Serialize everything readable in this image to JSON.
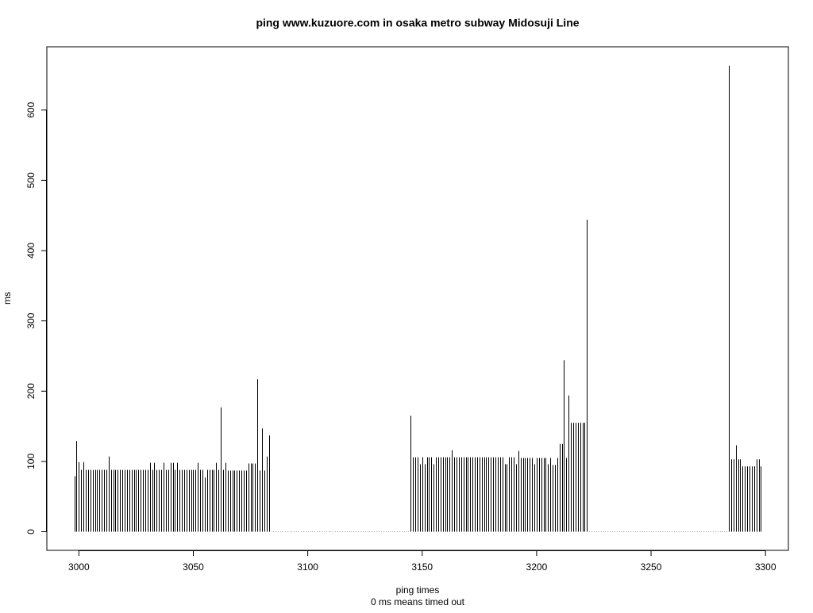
{
  "chart_data": {
    "type": "spike",
    "title": "ping www.kuzuore.com in osaka metro subway Midosuji Line",
    "xlabel": "ping times",
    "xlabel_note": "0 ms means timed out",
    "ylabel": "ms",
    "color": "#000000",
    "xlim": [
      2986,
      3310
    ],
    "ylim": [
      -26.5,
      690
    ],
    "xticks": [
      3000,
      3050,
      3100,
      3150,
      3200,
      3250,
      3300
    ],
    "yticks": [
      0,
      100,
      200,
      300,
      400,
      500,
      600
    ],
    "x": [
      2998,
      2999,
      3000,
      3001,
      3002,
      3003,
      3004,
      3005,
      3006,
      3007,
      3008,
      3009,
      3010,
      3011,
      3012,
      3013,
      3014,
      3015,
      3016,
      3017,
      3018,
      3019,
      3020,
      3021,
      3022,
      3023,
      3024,
      3025,
      3026,
      3027,
      3028,
      3029,
      3030,
      3031,
      3032,
      3033,
      3034,
      3035,
      3036,
      3037,
      3038,
      3039,
      3040,
      3041,
      3042,
      3043,
      3044,
      3045,
      3046,
      3047,
      3048,
      3049,
      3050,
      3051,
      3052,
      3053,
      3054,
      3055,
      3056,
      3057,
      3058,
      3059,
      3060,
      3061,
      3062,
      3063,
      3064,
      3065,
      3066,
      3067,
      3068,
      3069,
      3070,
      3071,
      3072,
      3073,
      3074,
      3075,
      3076,
      3077,
      3078,
      3079,
      3080,
      3081,
      3082,
      3083,
      3084,
      3085,
      3086,
      3087,
      3088,
      3089,
      3090,
      3091,
      3092,
      3093,
      3094,
      3095,
      3096,
      3097,
      3098,
      3099,
      3100,
      3101,
      3102,
      3103,
      3104,
      3105,
      3106,
      3107,
      3108,
      3109,
      3110,
      3111,
      3112,
      3113,
      3114,
      3115,
      3116,
      3117,
      3118,
      3119,
      3120,
      3121,
      3122,
      3123,
      3124,
      3125,
      3126,
      3127,
      3128,
      3129,
      3130,
      3131,
      3132,
      3133,
      3134,
      3135,
      3136,
      3137,
      3138,
      3139,
      3140,
      3141,
      3142,
      3143,
      3144,
      3145,
      3146,
      3147,
      3148,
      3149,
      3150,
      3151,
      3152,
      3153,
      3154,
      3155,
      3156,
      3157,
      3158,
      3159,
      3160,
      3161,
      3162,
      3163,
      3164,
      3165,
      3166,
      3167,
      3168,
      3169,
      3170,
      3171,
      3172,
      3173,
      3174,
      3175,
      3176,
      3177,
      3178,
      3179,
      3180,
      3181,
      3182,
      3183,
      3184,
      3185,
      3186,
      3187,
      3188,
      3189,
      3190,
      3191,
      3192,
      3193,
      3194,
      3195,
      3196,
      3197,
      3198,
      3199,
      3200,
      3201,
      3202,
      3203,
      3204,
      3205,
      3206,
      3207,
      3208,
      3209,
      3210,
      3211,
      3212,
      3213,
      3214,
      3215,
      3216,
      3217,
      3218,
      3219,
      3220,
      3221,
      3222,
      3223,
      3224,
      3225,
      3226,
      3227,
      3228,
      3229,
      3230,
      3231,
      3232,
      3233,
      3234,
      3235,
      3236,
      3237,
      3238,
      3239,
      3240,
      3241,
      3242,
      3243,
      3244,
      3245,
      3246,
      3247,
      3248,
      3249,
      3250,
      3251,
      3252,
      3253,
      3254,
      3255,
      3256,
      3257,
      3258,
      3259,
      3260,
      3261,
      3262,
      3263,
      3264,
      3265,
      3266,
      3267,
      3268,
      3269,
      3270,
      3271,
      3272,
      3273,
      3274,
      3275,
      3276,
      3277,
      3278,
      3279,
      3280,
      3281,
      3282,
      3283,
      3284,
      3285,
      3286,
      3287,
      3288,
      3289,
      3290,
      3291,
      3292,
      3293,
      3294,
      3295,
      3296,
      3297,
      3298
    ],
    "values": [
      79,
      129,
      99,
      88,
      99,
      88,
      88,
      88,
      88,
      88,
      88,
      88,
      88,
      88,
      88,
      107,
      88,
      88,
      88,
      88,
      88,
      88,
      88,
      88,
      88,
      88,
      88,
      88,
      88,
      88,
      88,
      88,
      88,
      98,
      88,
      98,
      88,
      88,
      88,
      98,
      88,
      88,
      98,
      98,
      88,
      98,
      88,
      88,
      88,
      88,
      88,
      88,
      88,
      88,
      98,
      88,
      88,
      77,
      88,
      88,
      88,
      88,
      98,
      88,
      177,
      88,
      98,
      87,
      87,
      87,
      87,
      87,
      87,
      87,
      87,
      87,
      97,
      97,
      97,
      97,
      217,
      87,
      147,
      87,
      107,
      137,
      0,
      0,
      0,
      0,
      0,
      0,
      0,
      0,
      0,
      0,
      0,
      0,
      0,
      0,
      0,
      0,
      0,
      0,
      0,
      0,
      0,
      0,
      0,
      0,
      0,
      0,
      0,
      0,
      0,
      0,
      0,
      0,
      0,
      0,
      0,
      0,
      0,
      0,
      0,
      0,
      0,
      0,
      0,
      0,
      0,
      0,
      0,
      0,
      0,
      0,
      0,
      0,
      0,
      0,
      0,
      0,
      0,
      0,
      0,
      0,
      0,
      165,
      106,
      106,
      106,
      96,
      106,
      96,
      106,
      106,
      106,
      96,
      106,
      106,
      106,
      106,
      106,
      106,
      106,
      116,
      106,
      106,
      106,
      106,
      106,
      106,
      106,
      106,
      106,
      106,
      106,
      106,
      106,
      106,
      106,
      106,
      106,
      106,
      106,
      106,
      106,
      106,
      96,
      96,
      106,
      106,
      106,
      96,
      115,
      105,
      105,
      105,
      105,
      105,
      105,
      96,
      105,
      105,
      105,
      105,
      105,
      96,
      105,
      95,
      95,
      105,
      125,
      125,
      244,
      105,
      194,
      155,
      155,
      155,
      155,
      155,
      155,
      155,
      444,
      0,
      0,
      0,
      0,
      0,
      0,
      0,
      0,
      0,
      0,
      0,
      0,
      0,
      0,
      0,
      0,
      0,
      0,
      0,
      0,
      0,
      0,
      0,
      0,
      0,
      0,
      0,
      0,
      0,
      0,
      0,
      0,
      0,
      0,
      0,
      0,
      0,
      0,
      0,
      0,
      0,
      0,
      0,
      0,
      0,
      0,
      0,
      0,
      0,
      0,
      0,
      0,
      0,
      0,
      0,
      0,
      0,
      0,
      0,
      0,
      0,
      663,
      103,
      103,
      123,
      103,
      103,
      93,
      93,
      93,
      93,
      93,
      93,
      103,
      103,
      93
    ]
  }
}
